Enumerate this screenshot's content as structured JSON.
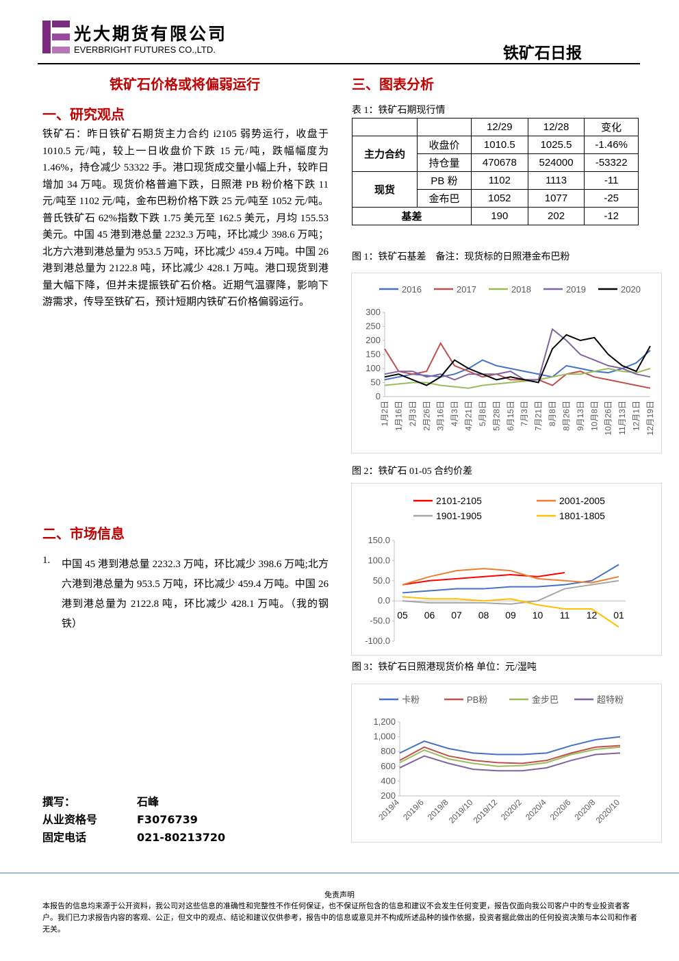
{
  "header": {
    "company_cn": "光大期货有限公司",
    "company_en": "EVERBRIGHT FUTURES CO.,LTD.",
    "report": "铁矿石日报"
  },
  "left": {
    "title": "铁矿石价格或将偏弱运行",
    "section1": "一、研究观点",
    "paragraph": "铁矿石：昨日铁矿石期货主力合约 i2105 弱势运行，收盘于 1010.5 元/吨，较上一日收盘价下跌 15 元/吨，跌幅幅度为 1.46%，持仓减少 53322 手。港口现货成交量小幅上升，较昨日增加 34 万吨。现货价格普遍下跌，日照港 PB 粉价格下跌 11 元/吨至 1102 元/吨，金布巴粉价格下跌 25 元/吨至 1052 元/吨。普氏铁矿石 62%指数下跌 1.75 美元至 162.5 美元，月均 155.53 美元。中国 45 港到港总量 2232.3 万吨，环比减少 398.6 万吨；北方六港到港总量为 953.5 万吨，环比减少 459.4 万吨。中国 26 港到港总量为 2122.8 吨，环比减少 428.1 万吨。港口现货到港量大幅下降，但并未提振铁矿石价格。近期气温骤降，影响下游需求，传导至铁矿石，预计短期内铁矿石价格偏弱运行。",
    "section2": "二、市场信息",
    "item_no": "1.",
    "item": "中国 45 港到港总量 2232.3 万吨，环比减少 398.6 万吨;北方六港到港总量为 953.5 万吨，环比减少 459.4 万吨。中国 26 港到港总量为 2122.8 吨，环比减少 428.1 万吨。（我的钢铁）",
    "authors": [
      [
        "撰写：",
        "石峰"
      ],
      [
        "从业资格号",
        "F3076739"
      ],
      [
        "固定电话",
        "021-80213720"
      ]
    ]
  },
  "right": {
    "section3": "三、图表分析",
    "table_caption": "表 1：铁矿石期现行情"
  },
  "table": {
    "header": [
      "12/29",
      "12/28",
      "变化"
    ],
    "groups": [
      {
        "name": "主力合约",
        "rows": [
          {
            "label": "收盘价",
            "cells": [
              "1010.5",
              "1025.5",
              "-1.46%"
            ]
          },
          {
            "label": "持仓量",
            "cells": [
              "470678",
              "524000",
              "-53322"
            ]
          }
        ]
      },
      {
        "name": "现货",
        "rows": [
          {
            "label": "PB 粉",
            "cells": [
              "1102",
              "1113",
              "-11"
            ]
          },
          {
            "label": "金布巴",
            "cells": [
              "1052",
              "1077",
              "-25"
            ]
          }
        ]
      },
      {
        "name": "基差",
        "cells": [
          "190",
          "202",
          "-12"
        ]
      }
    ]
  },
  "chart_data": [
    {
      "type": "line",
      "title": "图 1：铁矿石基差　备注：现货标的日照港金布巴粉",
      "categories": [
        "1月2日",
        "1月16日",
        "2月3日",
        "2月26日",
        "3月16日",
        "4月3日",
        "4月21日",
        "5月8日",
        "5月28日",
        "6月15日",
        "7月3日",
        "7月21日",
        "8月8日",
        "8月26日",
        "9月13日",
        "10月8日",
        "10月26日",
        "11月13日",
        "12月1日",
        "12月19日"
      ],
      "ylim": [
        0,
        300
      ],
      "yticks": [
        0,
        50,
        100,
        150,
        200,
        250,
        300
      ],
      "series": [
        {
          "name": "2016",
          "color": "#4472c4",
          "values": [
            60,
            70,
            80,
            75,
            70,
            80,
            100,
            130,
            110,
            100,
            90,
            80,
            70,
            110,
            100,
            90,
            85,
            100,
            120,
            165
          ]
        },
        {
          "name": "2017",
          "color": "#c0504d",
          "values": [
            170,
            90,
            80,
            90,
            190,
            110,
            90,
            70,
            80,
            60,
            60,
            60,
            40,
            80,
            90,
            70,
            60,
            50,
            40,
            30
          ]
        },
        {
          "name": "2018",
          "color": "#9bbb59",
          "values": [
            40,
            45,
            50,
            50,
            40,
            35,
            30,
            40,
            45,
            50,
            55,
            60,
            70,
            80,
            80,
            90,
            100,
            90,
            85,
            100
          ]
        },
        {
          "name": "2019",
          "color": "#8064a2",
          "values": [
            80,
            90,
            90,
            70,
            80,
            60,
            80,
            80,
            80,
            90,
            60,
            60,
            240,
            200,
            150,
            130,
            110,
            100,
            80,
            70
          ]
        },
        {
          "name": "2020",
          "color": "#000000",
          "values": [
            70,
            80,
            60,
            40,
            70,
            130,
            100,
            80,
            60,
            70,
            60,
            50,
            170,
            220,
            200,
            210,
            150,
            110,
            90,
            180
          ]
        }
      ]
    },
    {
      "type": "line",
      "title": "图 2：铁矿石 01-05 合约价差",
      "categories": [
        "05",
        "06",
        "07",
        "08",
        "09",
        "10",
        "11",
        "12",
        "01"
      ],
      "ylim": [
        -100,
        150
      ],
      "yticks": [
        {
          "value": -100,
          "label": "-100.0"
        },
        {
          "value": -50,
          "label": "-50.0"
        },
        {
          "value": 0,
          "label": "0.0"
        },
        {
          "value": 50,
          "label": "50.0"
        },
        {
          "value": 100,
          "label": "100.0"
        },
        {
          "value": 150,
          "label": "150.0"
        }
      ],
      "series": [
        {
          "color": "#4472c4",
          "values": [
            20,
            25,
            30,
            30,
            35,
            35,
            40,
            50,
            90
          ]
        },
        {
          "name": "2101-2105",
          "color": "#ff0000",
          "values": [
            40,
            50,
            55,
            60,
            65,
            60,
            70,
            null,
            null
          ]
        },
        {
          "name": "2001-2005",
          "color": "#ed7d31",
          "values": [
            40,
            60,
            75,
            80,
            75,
            55,
            50,
            45,
            60
          ]
        },
        {
          "name": "1901-1905",
          "color": "#a5a5a5",
          "values": [
            0,
            -5,
            -5,
            -5,
            -8,
            0,
            30,
            40,
            50
          ]
        },
        {
          "name": "1801-1805",
          "color": "#ffc000",
          "values": [
            10,
            5,
            5,
            0,
            5,
            -10,
            -20,
            -20,
            -65
          ]
        }
      ]
    },
    {
      "type": "line",
      "title": "图 3：铁矿石日照港现货价格 单位：元/湿吨",
      "categories": [
        "2019/4",
        "2019/6",
        "2019/8",
        "2019/10",
        "2019/12",
        "2020/2",
        "2020/4",
        "2020/6",
        "2020/8",
        "2020/10"
      ],
      "ylim": [
        200,
        1200
      ],
      "yticks": [
        200,
        400,
        600,
        800,
        {
          "value": 1000,
          "label": "1,000"
        },
        {
          "value": 1200,
          "label": "1,200"
        }
      ],
      "series": [
        {
          "name": "卡粉",
          "color": "#4472c4",
          "values": [
            780,
            940,
            840,
            780,
            760,
            760,
            780,
            880,
            960,
            1000
          ]
        },
        {
          "name": "PB粉",
          "color": "#c0504d",
          "values": [
            680,
            860,
            740,
            680,
            650,
            640,
            680,
            780,
            860,
            880
          ]
        },
        {
          "name": "金步巴",
          "color": "#9bbb59",
          "values": [
            650,
            820,
            700,
            640,
            600,
            610,
            650,
            760,
            830,
            860
          ]
        },
        {
          "name": "超特粉",
          "color": "#8064a2",
          "values": [
            580,
            740,
            640,
            560,
            540,
            540,
            580,
            680,
            760,
            780
          ]
        }
      ]
    }
  ],
  "footer": {
    "title": "免责声明",
    "text": "本报告的信息均来源于公开资料，我公司对这些信息的准确性和完整性不作任何保证，也不保证所包含的信息和建议不会发生任何变更，报告仅面向我公司客户中的专业投资者客户。我们已力求报告内容的客观、公正，但文中的观点、结论和建议仅供参考，报告中的信息或意见并不构成所述品种的操作依据，投资者据此做出的任何投资决策与本公司和作者无关。"
  }
}
